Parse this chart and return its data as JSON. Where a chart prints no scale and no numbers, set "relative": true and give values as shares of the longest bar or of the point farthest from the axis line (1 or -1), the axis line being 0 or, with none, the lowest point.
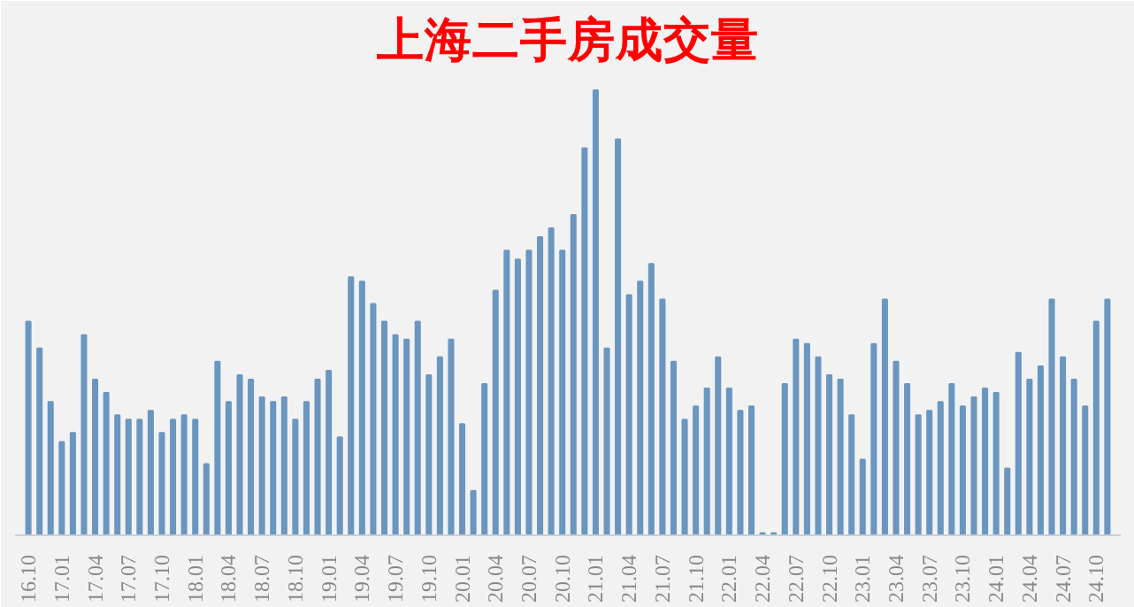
{
  "chart_data": {
    "type": "bar",
    "title": "上海二手房成交量",
    "relative": true,
    "color": "#6a96c0",
    "categories": [
      "16.10",
      null,
      null,
      "17.01",
      null,
      null,
      "17.04",
      null,
      null,
      "17.07",
      null,
      null,
      "17.10",
      null,
      null,
      "18.01",
      null,
      null,
      "18.04",
      null,
      null,
      "18.07",
      null,
      null,
      "18.10",
      null,
      null,
      "19.01",
      null,
      null,
      "19.04",
      null,
      null,
      "19.07",
      null,
      null,
      "19.10",
      null,
      null,
      "20.01",
      null,
      null,
      "20.04",
      null,
      null,
      "20.07",
      null,
      null,
      "20.10",
      null,
      null,
      "21.01",
      null,
      null,
      "21.04",
      null,
      null,
      "21.07",
      null,
      null,
      "21.10",
      null,
      null,
      "22.01",
      null,
      null,
      "22.04",
      null,
      null,
      "22.07",
      null,
      null,
      "22.10",
      null,
      null,
      "23.01",
      null,
      null,
      "23.04",
      null,
      null,
      "23.07",
      null,
      null,
      "23.10",
      null,
      null,
      "24.01",
      null,
      null,
      "24.04",
      null,
      null,
      "24.07",
      null,
      null,
      "24.10",
      null
    ],
    "values": [
      0.48,
      0.42,
      0.3,
      0.21,
      0.23,
      0.45,
      0.35,
      0.32,
      0.27,
      0.26,
      0.26,
      0.28,
      0.23,
      0.26,
      0.27,
      0.26,
      0.16,
      0.39,
      0.3,
      0.36,
      0.35,
      0.31,
      0.3,
      0.31,
      0.26,
      0.3,
      0.35,
      0.37,
      0.22,
      0.58,
      0.57,
      0.52,
      0.48,
      0.45,
      0.44,
      0.48,
      0.36,
      0.4,
      0.44,
      0.25,
      0.1,
      0.34,
      0.55,
      0.64,
      0.62,
      0.64,
      0.67,
      0.69,
      0.64,
      0.72,
      0.87,
      1,
      0.42,
      0.89,
      0.54,
      0.57,
      0.61,
      0.53,
      0.39,
      0.26,
      0.29,
      0.33,
      0.4,
      0.33,
      0.28,
      0.29,
      0.005,
      0.005,
      0.34,
      0.44,
      0.43,
      0.4,
      0.36,
      0.35,
      0.27,
      0.17,
      0.43,
      0.53,
      0.39,
      0.34,
      0.27,
      0.28,
      0.3,
      0.34,
      0.29,
      0.31,
      0.33,
      0.32,
      0.15,
      0.41,
      0.35,
      0.38,
      0.53,
      0.4,
      0.35,
      0.29,
      0.48,
      0.53
    ]
  }
}
